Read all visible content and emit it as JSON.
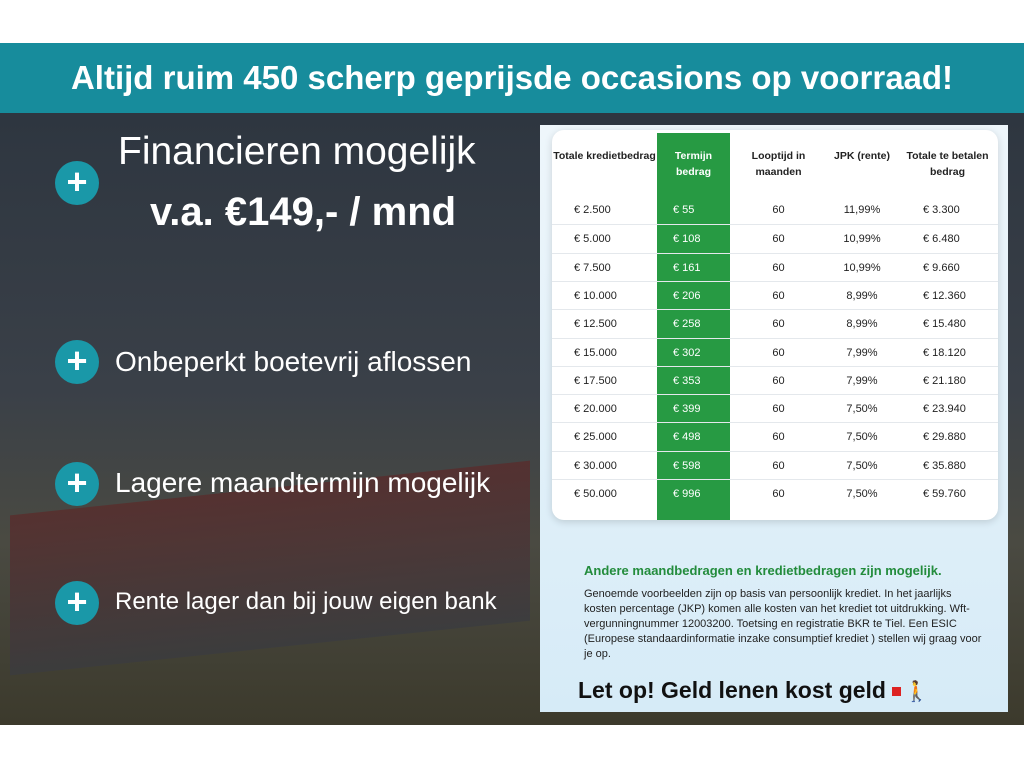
{
  "banner": "Altijd ruim 450 scherp geprijsde occasions op voorraad!",
  "headline": {
    "line1": "Financieren mogelijk",
    "line2": "v.a. €149,- / mnd"
  },
  "features": [
    "Onbeperkt boetevrij aflossen",
    "Lagere maandtermijn mogelijk",
    "Rente lager dan bij jouw eigen bank"
  ],
  "plus_icon": "+",
  "colors": {
    "banner": "#178c9c",
    "green": "#279a43",
    "plus": "#1a98a8"
  },
  "table": {
    "headers": [
      "Totale kredietbedrag",
      "Termijn bedrag",
      "Looptijd in maanden",
      "JPK (rente)",
      "Totale te betalen bedrag"
    ],
    "rows": [
      [
        "€ 2.500",
        "€ 55",
        "60",
        "11,99%",
        "€ 3.300"
      ],
      [
        "€ 5.000",
        "€ 108",
        "60",
        "10,99%",
        "€ 6.480"
      ],
      [
        "€ 7.500",
        "€ 161",
        "60",
        "10,99%",
        "€ 9.660"
      ],
      [
        "€ 10.000",
        "€ 206",
        "60",
        "8,99%",
        "€ 12.360"
      ],
      [
        "€ 12.500",
        "€ 258",
        "60",
        "8,99%",
        "€ 15.480"
      ],
      [
        "€ 15.000",
        "€ 302",
        "60",
        "7,99%",
        "€ 18.120"
      ],
      [
        "€ 17.500",
        "€ 353",
        "60",
        "7,99%",
        "€ 21.180"
      ],
      [
        "€ 20.000",
        "€ 399",
        "60",
        "7,50%",
        "€ 23.940"
      ],
      [
        "€ 25.000",
        "€ 498",
        "60",
        "7,50%",
        "€ 29.880"
      ],
      [
        "€ 30.000",
        "€ 598",
        "60",
        "7,50%",
        "€ 35.880"
      ],
      [
        "€ 50.000",
        "€ 996",
        "60",
        "7,50%",
        "€ 59.760"
      ]
    ]
  },
  "note_title": "Andere maandbedragen en kredietbedragen zijn mogelijk.",
  "note": "Genoemde voorbeelden zijn op basis van persoonlijk krediet. In het jaarlijks kosten percentage (JKP) komen alle kosten van het krediet tot uitdrukking. Wft-vergunningnummer 12003200. Toetsing en registratie BKR te Tiel. Een ESIC (Europese standaardinformatie inzake consumptief krediet ) stellen wij graag voor je op.",
  "warning": "Let op! Geld lenen kost geld",
  "walker_icon": "🚶"
}
